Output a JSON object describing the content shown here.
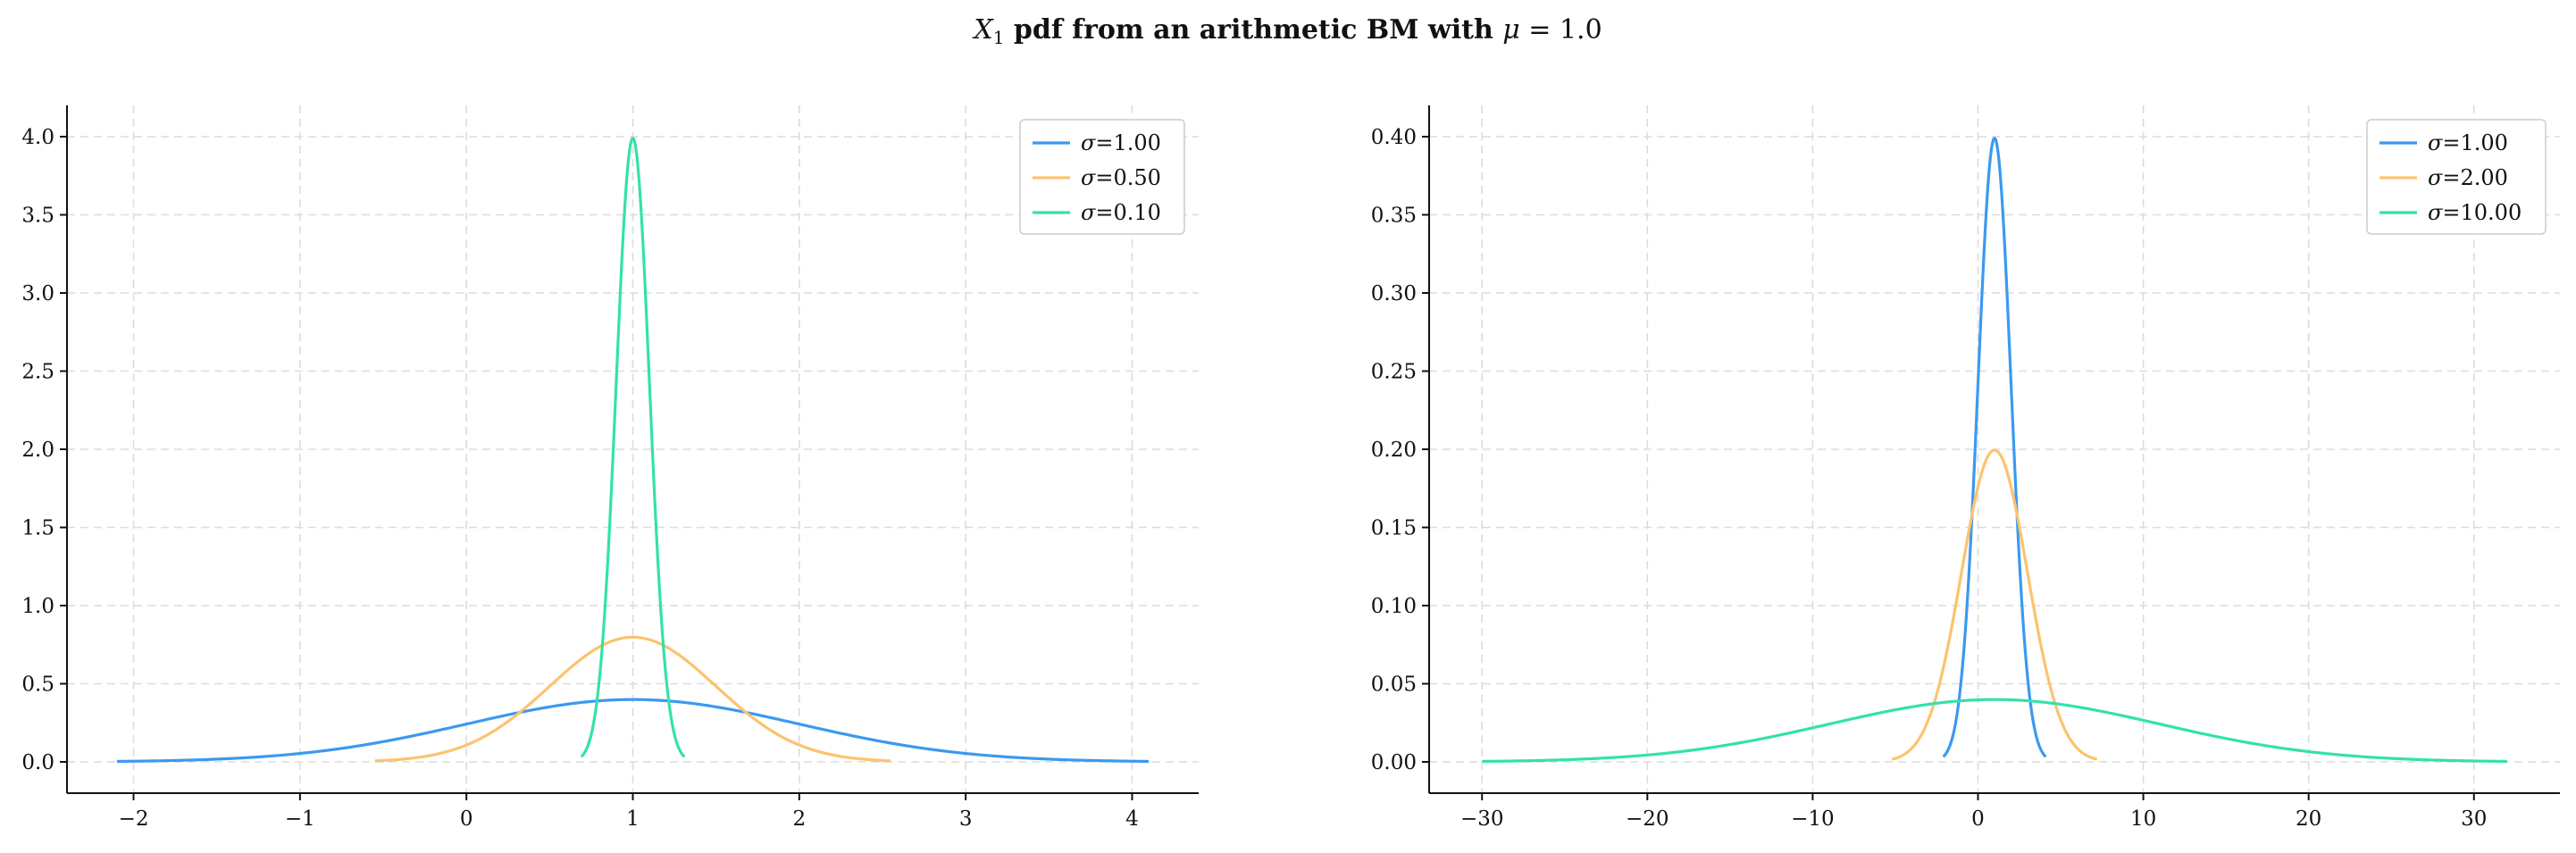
{
  "figure": {
    "title_prefix": "X",
    "title_sub": "1",
    "title_text": " pdf from an arithmetic BM with ",
    "title_mu": "μ",
    "title_eq": " = 1.0"
  },
  "colors": {
    "series1": "#3b99f0",
    "series2": "#fcc36e",
    "series3": "#33e2a8"
  },
  "chart_data": [
    {
      "type": "line",
      "title": "",
      "xlabel": "",
      "ylabel": "",
      "mu": 1.0,
      "xlim": [
        -2.4,
        4.4
      ],
      "ylim": [
        -0.2,
        4.2
      ],
      "xticks": [
        -2,
        -1,
        0,
        1,
        2,
        3,
        4
      ],
      "xtick_labels": [
        "−2",
        "−1",
        "0",
        "1",
        "2",
        "3",
        "4"
      ],
      "yticks": [
        0.0,
        0.5,
        1.0,
        1.5,
        2.0,
        2.5,
        3.0,
        3.5,
        4.0
      ],
      "ytick_labels": [
        "0.0",
        "0.5",
        "1.0",
        "1.5",
        "2.0",
        "2.5",
        "3.0",
        "3.5",
        "4.0"
      ],
      "grid": true,
      "legend_position": "top-right",
      "series": [
        {
          "name": "σ=1.00",
          "sigma": 1.0,
          "x_range": [
            -2.1,
            4.1
          ],
          "peak": 0.399,
          "color": "#3b99f0"
        },
        {
          "name": "σ=0.50",
          "sigma": 0.5,
          "x_range": [
            -0.55,
            2.55
          ],
          "peak": 0.798,
          "color": "#fcc36e"
        },
        {
          "name": "σ=0.10",
          "sigma": 0.1,
          "x_range": [
            0.69,
            1.31
          ],
          "peak": 3.989,
          "color": "#33e2a8"
        }
      ]
    },
    {
      "type": "line",
      "title": "",
      "xlabel": "",
      "ylabel": "",
      "mu": 1.0,
      "xlim": [
        -33.2,
        35.2
      ],
      "ylim": [
        -0.02,
        0.42
      ],
      "xticks": [
        -30,
        -20,
        -10,
        0,
        10,
        20,
        30
      ],
      "xtick_labels": [
        "−30",
        "−20",
        "−10",
        "0",
        "10",
        "20",
        "30"
      ],
      "yticks": [
        0.0,
        0.05,
        0.1,
        0.15,
        0.2,
        0.25,
        0.3,
        0.35,
        0.4
      ],
      "ytick_labels": [
        "0.00",
        "0.05",
        "0.10",
        "0.15",
        "0.20",
        "0.25",
        "0.30",
        "0.35",
        "0.40"
      ],
      "grid": true,
      "legend_position": "top-right",
      "series": [
        {
          "name": "σ=1.00",
          "sigma": 1.0,
          "x_range": [
            -2.1,
            4.1
          ],
          "peak": 0.399,
          "color": "#3b99f0"
        },
        {
          "name": "σ=2.00",
          "sigma": 2.0,
          "x_range": [
            -5.2,
            7.2
          ],
          "peak": 0.199,
          "color": "#fcc36e"
        },
        {
          "name": "σ=10.00",
          "sigma": 10.0,
          "x_range": [
            -30.0,
            32.0
          ],
          "peak": 0.0399,
          "color": "#33e2a8"
        }
      ]
    }
  ]
}
